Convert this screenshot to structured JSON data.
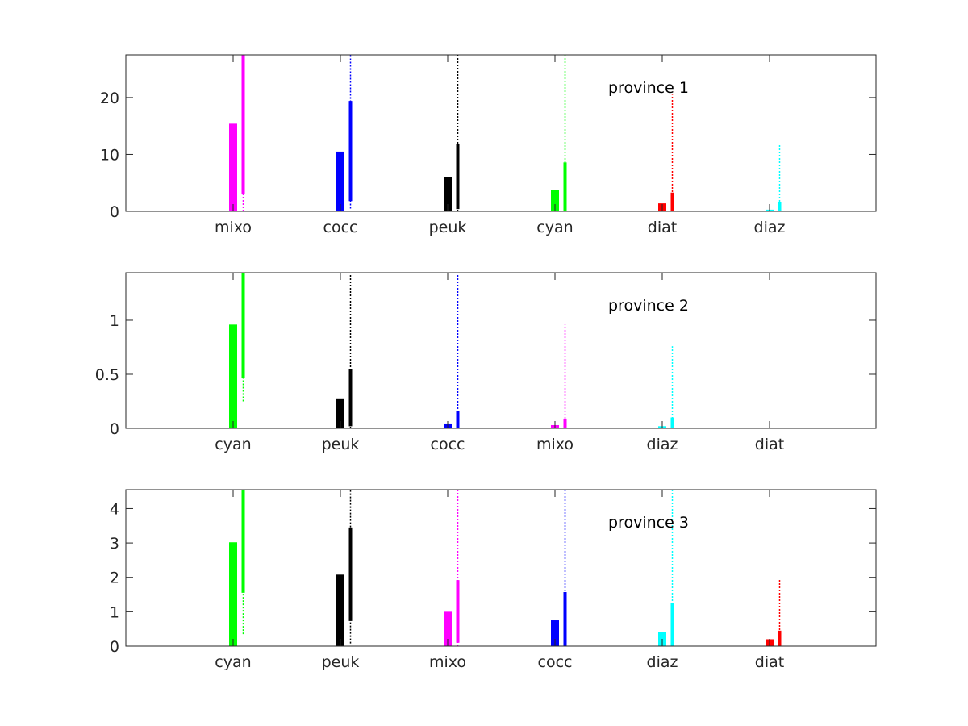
{
  "colors": {
    "mixo": "#ff00ff",
    "cocc": "#0000ff",
    "peuk": "#000000",
    "cyan": "#00ff00",
    "diat": "#ff0000",
    "diaz": "#00ffff"
  },
  "chart_data": [
    {
      "type": "bar",
      "title": "province 1",
      "categories": [
        "mixo",
        "cocc",
        "peuk",
        "cyan",
        "diat",
        "diaz"
      ],
      "ylim": [
        0,
        27.5
      ],
      "yticks": [
        0,
        10,
        20
      ],
      "ytick_labels": [
        "0",
        "10",
        "20"
      ],
      "grid": false,
      "bars": [
        15.4,
        10.5,
        6.0,
        3.7,
        1.4,
        0.3
      ],
      "ranges": [
        {
          "q_low": 3.0,
          "q_high": 27.5,
          "min": 0.0,
          "max": 27.5
        },
        {
          "q_low": 1.8,
          "q_high": 19.4,
          "min": 0.5,
          "max": 27.5
        },
        {
          "q_low": 0.4,
          "q_high": 11.8,
          "min": 0.0,
          "max": 27.5
        },
        {
          "q_low": 0.0,
          "q_high": 8.6,
          "min": 0.0,
          "max": 27.5
        },
        {
          "q_low": 0.0,
          "q_high": 3.3,
          "min": 0.0,
          "max": 20.5
        },
        {
          "q_low": 0.0,
          "q_high": 1.7,
          "min": 0.0,
          "max": 11.7
        }
      ]
    },
    {
      "type": "bar",
      "title": "province 2",
      "categories": [
        "cyan",
        "peuk",
        "cocc",
        "mixo",
        "diaz",
        "diat"
      ],
      "ylim": [
        0,
        1.44
      ],
      "yticks": [
        0,
        0.5,
        1
      ],
      "ytick_labels": [
        "0",
        "0.5",
        "1"
      ],
      "grid": false,
      "bars": [
        0.96,
        0.27,
        0.045,
        0.03,
        0.02,
        0.0
      ],
      "ranges": [
        {
          "q_low": 0.47,
          "q_high": 1.44,
          "min": 0.25,
          "max": 1.44
        },
        {
          "q_low": 0.02,
          "q_high": 0.55,
          "min": 0.0,
          "max": 1.42
        },
        {
          "q_low": 0.0,
          "q_high": 0.16,
          "min": 0.0,
          "max": 1.44
        },
        {
          "q_low": 0.0,
          "q_high": 0.09,
          "min": 0.0,
          "max": 0.96
        },
        {
          "q_low": 0.0,
          "q_high": 0.1,
          "min": 0.0,
          "max": 0.76
        },
        {
          "q_low": 0.0,
          "q_high": 0.0,
          "min": 0.0,
          "max": 0.0
        }
      ]
    },
    {
      "type": "bar",
      "title": "province 3",
      "categories": [
        "cyan",
        "peuk",
        "mixo",
        "cocc",
        "diaz",
        "diat"
      ],
      "ylim": [
        0,
        4.55
      ],
      "yticks": [
        0,
        1,
        2,
        3,
        4
      ],
      "ytick_labels": [
        "0",
        "1",
        "2",
        "3",
        "4"
      ],
      "grid": false,
      "bars": [
        3.02,
        2.08,
        1.0,
        0.75,
        0.42,
        0.2
      ],
      "ranges": [
        {
          "q_low": 1.55,
          "q_high": 4.55,
          "min": 0.35,
          "max": 4.55
        },
        {
          "q_low": 0.73,
          "q_high": 3.45,
          "min": 0.08,
          "max": 4.55
        },
        {
          "q_low": 0.1,
          "q_high": 1.92,
          "min": 0.0,
          "max": 4.55
        },
        {
          "q_low": 0.0,
          "q_high": 1.57,
          "min": 0.0,
          "max": 4.55
        },
        {
          "q_low": 0.0,
          "q_high": 1.25,
          "min": 0.0,
          "max": 4.55
        },
        {
          "q_low": 0.0,
          "q_high": 0.45,
          "min": 0.0,
          "max": 1.93
        }
      ]
    }
  ]
}
